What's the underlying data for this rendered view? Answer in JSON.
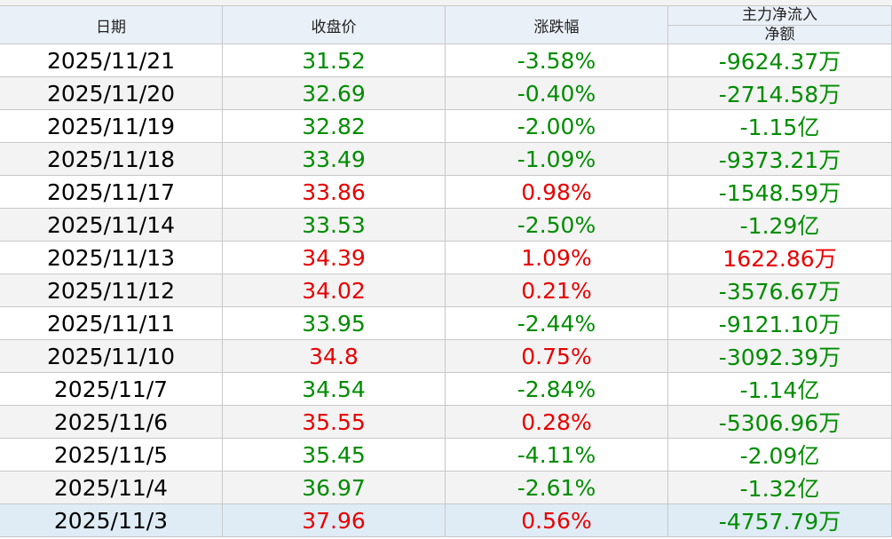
{
  "table": {
    "header": [
      "日期",
      "收盘价",
      "涨跌幅",
      "主力净流入"
    ],
    "header_sub": "净额",
    "colors": {
      "up": "#e60000",
      "down": "#008c00",
      "neutral": "#000000"
    },
    "rows": [
      [
        "2025/11/21",
        "31.52",
        "-3.58%",
        "-9624.37万"
      ],
      [
        "2025/11/20",
        "32.69",
        "-0.40%",
        "-2714.58万"
      ],
      [
        "2025/11/19",
        "32.82",
        "-2.00%",
        "-1.15亿"
      ],
      [
        "2025/11/18",
        "33.49",
        "-1.09%",
        "-9373.21万"
      ],
      [
        "2025/11/17",
        "33.86",
        "0.98%",
        "-1548.59万"
      ],
      [
        "2025/11/14",
        "33.53",
        "-2.50%",
        "-1.29亿"
      ],
      [
        "2025/11/13",
        "34.39",
        "1.09%",
        "1622.86万"
      ],
      [
        "2025/11/12",
        "34.02",
        "0.21%",
        "-3576.67万"
      ],
      [
        "2025/11/11",
        "33.95",
        "-2.44%",
        "-9121.10万"
      ],
      [
        "2025/11/10",
        "34.8",
        "0.75%",
        "-3092.39万"
      ],
      [
        "2025/11/7",
        "34.54",
        "-2.84%",
        "-1.14亿"
      ],
      [
        "2025/11/6",
        "35.55",
        "0.28%",
        "-5306.96万"
      ],
      [
        "2025/11/5",
        "35.45",
        "-4.11%",
        "-2.09亿"
      ],
      [
        "2025/11/4",
        "36.97",
        "-2.61%",
        "-1.32亿"
      ],
      [
        "2025/11/3",
        "37.96",
        "0.56%",
        "-4757.79万"
      ]
    ]
  }
}
